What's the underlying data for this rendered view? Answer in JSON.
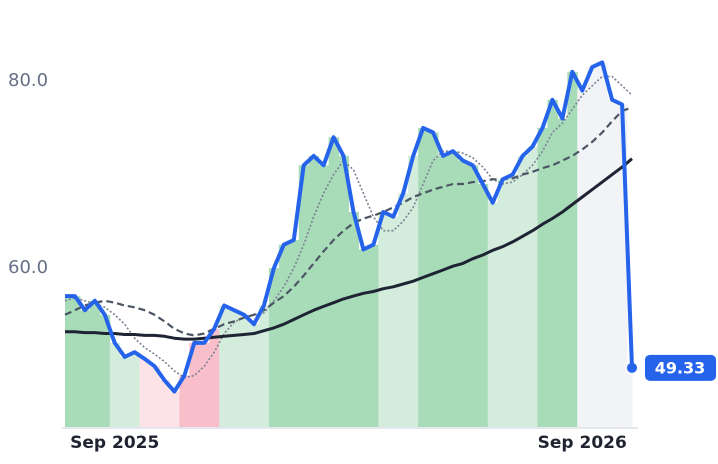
{
  "chart_data": {
    "type": "line",
    "categories": [
      null,
      null,
      null,
      null,
      null,
      "Sep 2025",
      null,
      null,
      null,
      null,
      null,
      null,
      null,
      null,
      null,
      null,
      null,
      null,
      null,
      null,
      null,
      null,
      null,
      null,
      null,
      null,
      null,
      null,
      null,
      null,
      null,
      null,
      null,
      null,
      null,
      null,
      null,
      null,
      null,
      null,
      null,
      null,
      null,
      null,
      null,
      null,
      null,
      null,
      null,
      null,
      null,
      null,
      "Sep 2026",
      null,
      null,
      null,
      null,
      null
    ],
    "series": [
      {
        "color": "#2563eb",
        "values": [
          57,
          57,
          55.5,
          56.5,
          55,
          52,
          50.5,
          51,
          50.3,
          49.5,
          48,
          46.8,
          48.5,
          52,
          52,
          53.5,
          56,
          55.5,
          55,
          54,
          56,
          60,
          62.5,
          63,
          71,
          72,
          71,
          74,
          72,
          66,
          62,
          62.5,
          66,
          65.5,
          68,
          72,
          75,
          74.5,
          72,
          72.5,
          71.5,
          71,
          69,
          67,
          69.5,
          70,
          72,
          73,
          75,
          78,
          76,
          81,
          79,
          81.5,
          82,
          78,
          77.5,
          49.33
        ]
      },
      {
        "color": "#7a8090",
        "values": [
          56.5,
          56.8,
          56.5,
          56.2,
          55.8,
          55,
          54,
          52.5,
          51.5,
          50.8,
          50,
          49,
          48.3,
          48.5,
          49.5,
          51,
          53,
          54.2,
          54.8,
          55,
          55.2,
          56.5,
          58,
          60,
          62.5,
          65.5,
          68,
          70,
          71.5,
          70.5,
          68,
          65.5,
          64,
          64,
          65,
          66.5,
          69,
          71.5,
          72.5,
          72.5,
          72.3,
          71.8,
          70.8,
          69.5,
          69,
          69.2,
          70,
          71,
          72.5,
          74.5,
          75.5,
          77,
          78.5,
          79.5,
          80.5,
          80.5,
          79.5,
          78.5
        ]
      },
      {
        "color": "#4b5563",
        "values": [
          55.0,
          55.5,
          56.0,
          56.3,
          56.5,
          56.3,
          56.0,
          55.8,
          55.5,
          55.0,
          54.3,
          53.5,
          53.0,
          52.8,
          53.0,
          53.5,
          54.0,
          54.3,
          54.7,
          55.0,
          55.5,
          56.3,
          57.0,
          58.0,
          59.2,
          60.5,
          61.8,
          63.0,
          64.0,
          64.8,
          65.3,
          65.6,
          66.0,
          66.5,
          67.0,
          67.6,
          68.0,
          68.4,
          68.7,
          69.0,
          69.0,
          69.2,
          69.3,
          69.5,
          69.5,
          69.6,
          70.0,
          70.3,
          70.7,
          71.0,
          71.5,
          72.0,
          72.7,
          73.5,
          74.5,
          75.7,
          76.8,
          77.2
        ]
      },
      {
        "color": "#1e2433",
        "values": [
          53.2,
          53.2,
          53.1,
          53.1,
          53.0,
          53.0,
          52.9,
          52.9,
          52.8,
          52.8,
          52.7,
          52.5,
          52.4,
          52.4,
          52.5,
          52.6,
          52.7,
          52.8,
          52.9,
          53.0,
          53.3,
          53.6,
          54.0,
          54.5,
          55.0,
          55.5,
          55.9,
          56.3,
          56.7,
          57.0,
          57.3,
          57.5,
          57.8,
          58.0,
          58.3,
          58.6,
          59.0,
          59.4,
          59.8,
          60.2,
          60.5,
          61.0,
          61.4,
          61.9,
          62.3,
          62.8,
          63.4,
          64.0,
          64.7,
          65.3,
          66.0,
          66.8,
          67.6,
          68.4,
          69.2,
          70.0,
          70.8,
          71.7
        ]
      }
    ],
    "band_colors": [
      "#a8dcb9",
      "#a8dcb9",
      "#a8dcb9",
      "#a8dcb9",
      "#a8dcb9",
      "#d3ecdc",
      "#d3ecdc",
      "#d3ecdc",
      "#fde2e8",
      "#fde2e8",
      "#fde2e8",
      "#fde2e8",
      "#f8bfcb",
      "#f8bfcb",
      "#f8bfcb",
      "#f8bfcb",
      "#d3ecdc",
      "#d3ecdc",
      "#d3ecdc",
      "#d3ecdc",
      "#d3ecdc",
      "#a8dcb9",
      "#a8dcb9",
      "#a8dcb9",
      "#a8dcb9",
      "#a8dcb9",
      "#a8dcb9",
      "#a8dcb9",
      "#a8dcb9",
      "#a8dcb9",
      "#a8dcb9",
      "#a8dcb9",
      "#d3ecdc",
      "#d3ecdc",
      "#d3ecdc",
      "#d3ecdc",
      "#a8dcb9",
      "#a8dcb9",
      "#a8dcb9",
      "#a8dcb9",
      "#a8dcb9",
      "#a8dcb9",
      "#a8dcb9",
      "#d3ecdc",
      "#d3ecdc",
      "#d3ecdc",
      "#d3ecdc",
      "#d3ecdc",
      "#a8dcb9",
      "#a8dcb9",
      "#a8dcb9",
      "#a8dcb9",
      "#f2f3f7",
      "#f2f3f7",
      "#f2f3f7",
      "#f2f3f7",
      "#f2f3f7",
      "#f2f3f7"
    ],
    "ylim": [
      43,
      84.4
    ],
    "yticks": [
      {
        "value": 60,
        "label": "60.0"
      },
      {
        "value": 80,
        "label": "80.0"
      }
    ],
    "grid": false
  }
}
